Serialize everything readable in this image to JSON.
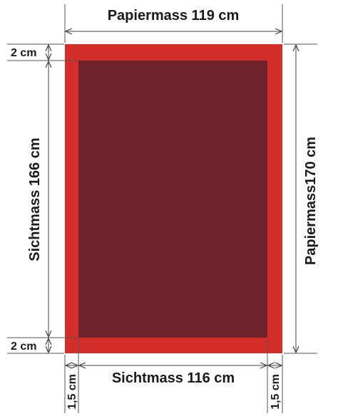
{
  "labels": {
    "paper_width": "Papiermass 119 cm",
    "paper_height": "Papiermass170 cm",
    "visible_height": "Sichtmass 166 cm",
    "visible_width": "Sichtmass 116 cm",
    "margin_top": "2 cm",
    "margin_bottom": "2 cm",
    "margin_left": "1,5 cm",
    "margin_right": "1,5 cm"
  },
  "colors": {
    "paper": "#d42e2b",
    "visible_area": "#6e222b",
    "line": "#444444",
    "text": "#1a1a1a"
  }
}
